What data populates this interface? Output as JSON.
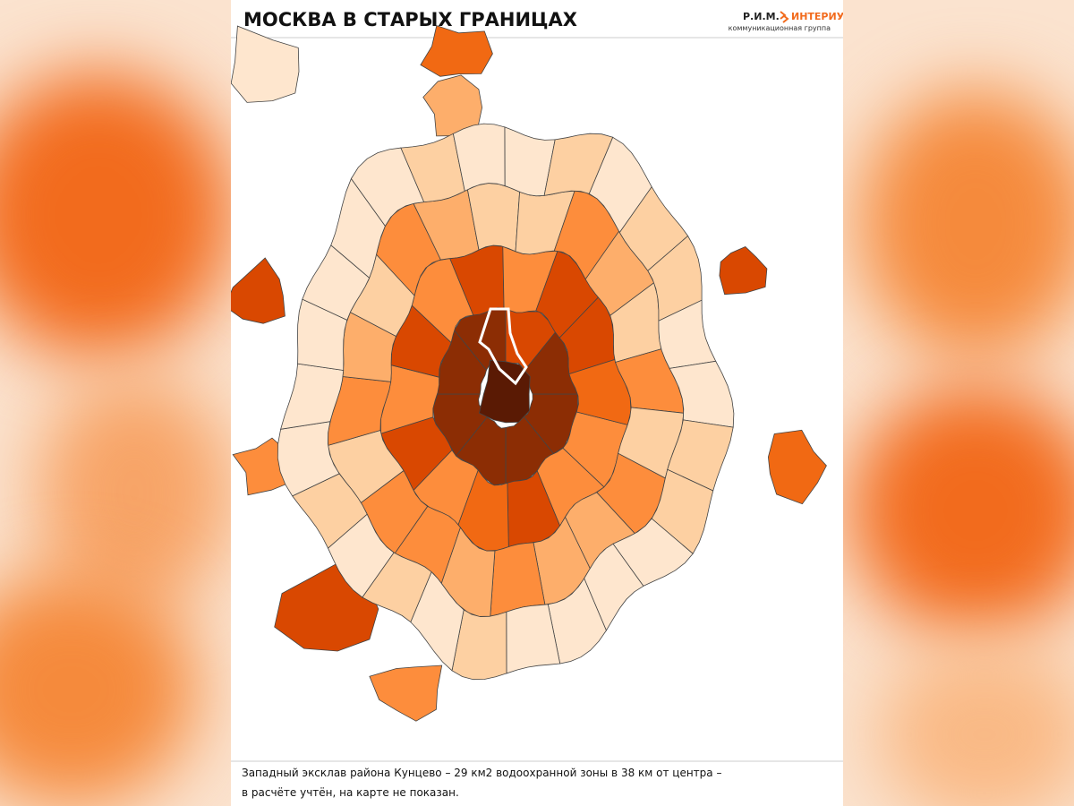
{
  "header": {
    "title": "МОСКВА В СТАРЫХ ГРАНИЦАХ",
    "logo": {
      "brand": "Р.И.М.",
      "name": "ИНТЕРИУМ",
      "tagline": "коммуникационная группа"
    }
  },
  "footnote": {
    "lines": [
      "Западный эксклав района Кунцево – 29 км2 водоохранной зоны в 38 км от центра –",
      "в расчёте учтён, на карте не показан."
    ]
  }
}
